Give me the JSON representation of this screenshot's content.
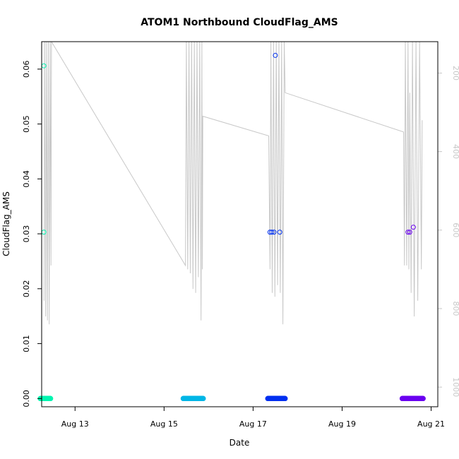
{
  "chart_data": {
    "type": "scatter",
    "title": "ATOM1 Northbound CloudFlag_AMS",
    "xlabel": "Date",
    "ylabel": "CloudFlag_AMS",
    "xlim": [
      12.25,
      21.15
    ],
    "ylim": [
      -0.0015,
      0.065
    ],
    "x_ticks": [
      {
        "value": 13,
        "label": "Aug 13"
      },
      {
        "value": 15,
        "label": "Aug 15"
      },
      {
        "value": 17,
        "label": "Aug 17"
      },
      {
        "value": 19,
        "label": "Aug 19"
      },
      {
        "value": 21,
        "label": "Aug 21"
      }
    ],
    "y_ticks": [
      {
        "value": 0.0,
        "label": "0.00"
      },
      {
        "value": 0.01,
        "label": "0.01"
      },
      {
        "value": 0.02,
        "label": "0.02"
      },
      {
        "value": 0.03,
        "label": "0.03"
      },
      {
        "value": 0.04,
        "label": "0.04"
      },
      {
        "value": 0.05,
        "label": "0.05"
      },
      {
        "value": 0.06,
        "label": "0.06"
      }
    ],
    "right_axis": {
      "color": "#c8c8c8",
      "range": [
        1050,
        120
      ],
      "ticks": [
        {
          "value": 200,
          "label": "200"
        },
        {
          "value": 400,
          "label": "400"
        },
        {
          "value": 600,
          "label": "600"
        },
        {
          "value": 800,
          "label": "800"
        },
        {
          "value": 1000,
          "label": "1000"
        }
      ]
    },
    "grid": false,
    "series": [
      {
        "color": "#00f5b0",
        "x_start": 12.22,
        "x_end": 12.45,
        "zero_count": 40,
        "points": [
          {
            "x": 12.3,
            "y": 0.0606
          },
          {
            "x": 12.3,
            "y": 0.0303
          }
        ]
      },
      {
        "color": "#00b6e6",
        "x_start": 15.43,
        "x_end": 15.88,
        "zero_count": 60,
        "points": []
      },
      {
        "color": "#0030f0",
        "x_start": 17.33,
        "x_end": 17.72,
        "zero_count": 60,
        "points": [
          {
            "x": 17.5,
            "y": 0.0625
          },
          {
            "x": 17.38,
            "y": 0.0303
          },
          {
            "x": 17.42,
            "y": 0.0303
          },
          {
            "x": 17.47,
            "y": 0.0303
          },
          {
            "x": 17.6,
            "y": 0.0303
          }
        ]
      },
      {
        "color": "#6a00f0",
        "x_start": 20.35,
        "x_end": 20.82,
        "zero_count": 60,
        "points": [
          {
            "x": 20.48,
            "y": 0.0303
          },
          {
            "x": 20.52,
            "y": 0.0303
          },
          {
            "x": 20.6,
            "y": 0.0312
          }
        ]
      }
    ],
    "altitude_line": {
      "color": "#c8c8c8",
      "points": [
        [
          12.3,
          780
        ],
        [
          12.32,
          120
        ],
        [
          12.34,
          820
        ],
        [
          12.36,
          120
        ],
        [
          12.38,
          830
        ],
        [
          12.4,
          120
        ],
        [
          12.42,
          840
        ],
        [
          12.44,
          120
        ],
        [
          12.46,
          690
        ],
        [
          12.47,
          120
        ],
        [
          15.48,
          690
        ],
        [
          15.5,
          120
        ],
        [
          15.53,
          700
        ],
        [
          15.56,
          120
        ],
        [
          15.59,
          710
        ],
        [
          15.62,
          120
        ],
        [
          15.65,
          750
        ],
        [
          15.68,
          120
        ],
        [
          15.71,
          760
        ],
        [
          15.74,
          120
        ],
        [
          15.77,
          720
        ],
        [
          15.8,
          120
        ],
        [
          15.83,
          830
        ],
        [
          15.85,
          120
        ],
        [
          15.86,
          700
        ],
        [
          15.87,
          310
        ],
        [
          17.35,
          360
        ],
        [
          17.38,
          700
        ],
        [
          17.4,
          120
        ],
        [
          17.43,
          760
        ],
        [
          17.46,
          120
        ],
        [
          17.49,
          770
        ],
        [
          17.52,
          120
        ],
        [
          17.55,
          740
        ],
        [
          17.58,
          120
        ],
        [
          17.61,
          760
        ],
        [
          17.64,
          120
        ],
        [
          17.67,
          840
        ],
        [
          17.7,
          120
        ],
        [
          17.72,
          250
        ],
        [
          20.38,
          350
        ],
        [
          20.4,
          690
        ],
        [
          20.42,
          120
        ],
        [
          20.45,
          690
        ],
        [
          20.48,
          120
        ],
        [
          20.5,
          700
        ],
        [
          20.52,
          250
        ],
        [
          20.55,
          760
        ],
        [
          20.58,
          120
        ],
        [
          20.62,
          820
        ],
        [
          20.66,
          120
        ],
        [
          20.7,
          780
        ],
        [
          20.74,
          120
        ],
        [
          20.78,
          700
        ],
        [
          20.8,
          320
        ]
      ]
    }
  }
}
